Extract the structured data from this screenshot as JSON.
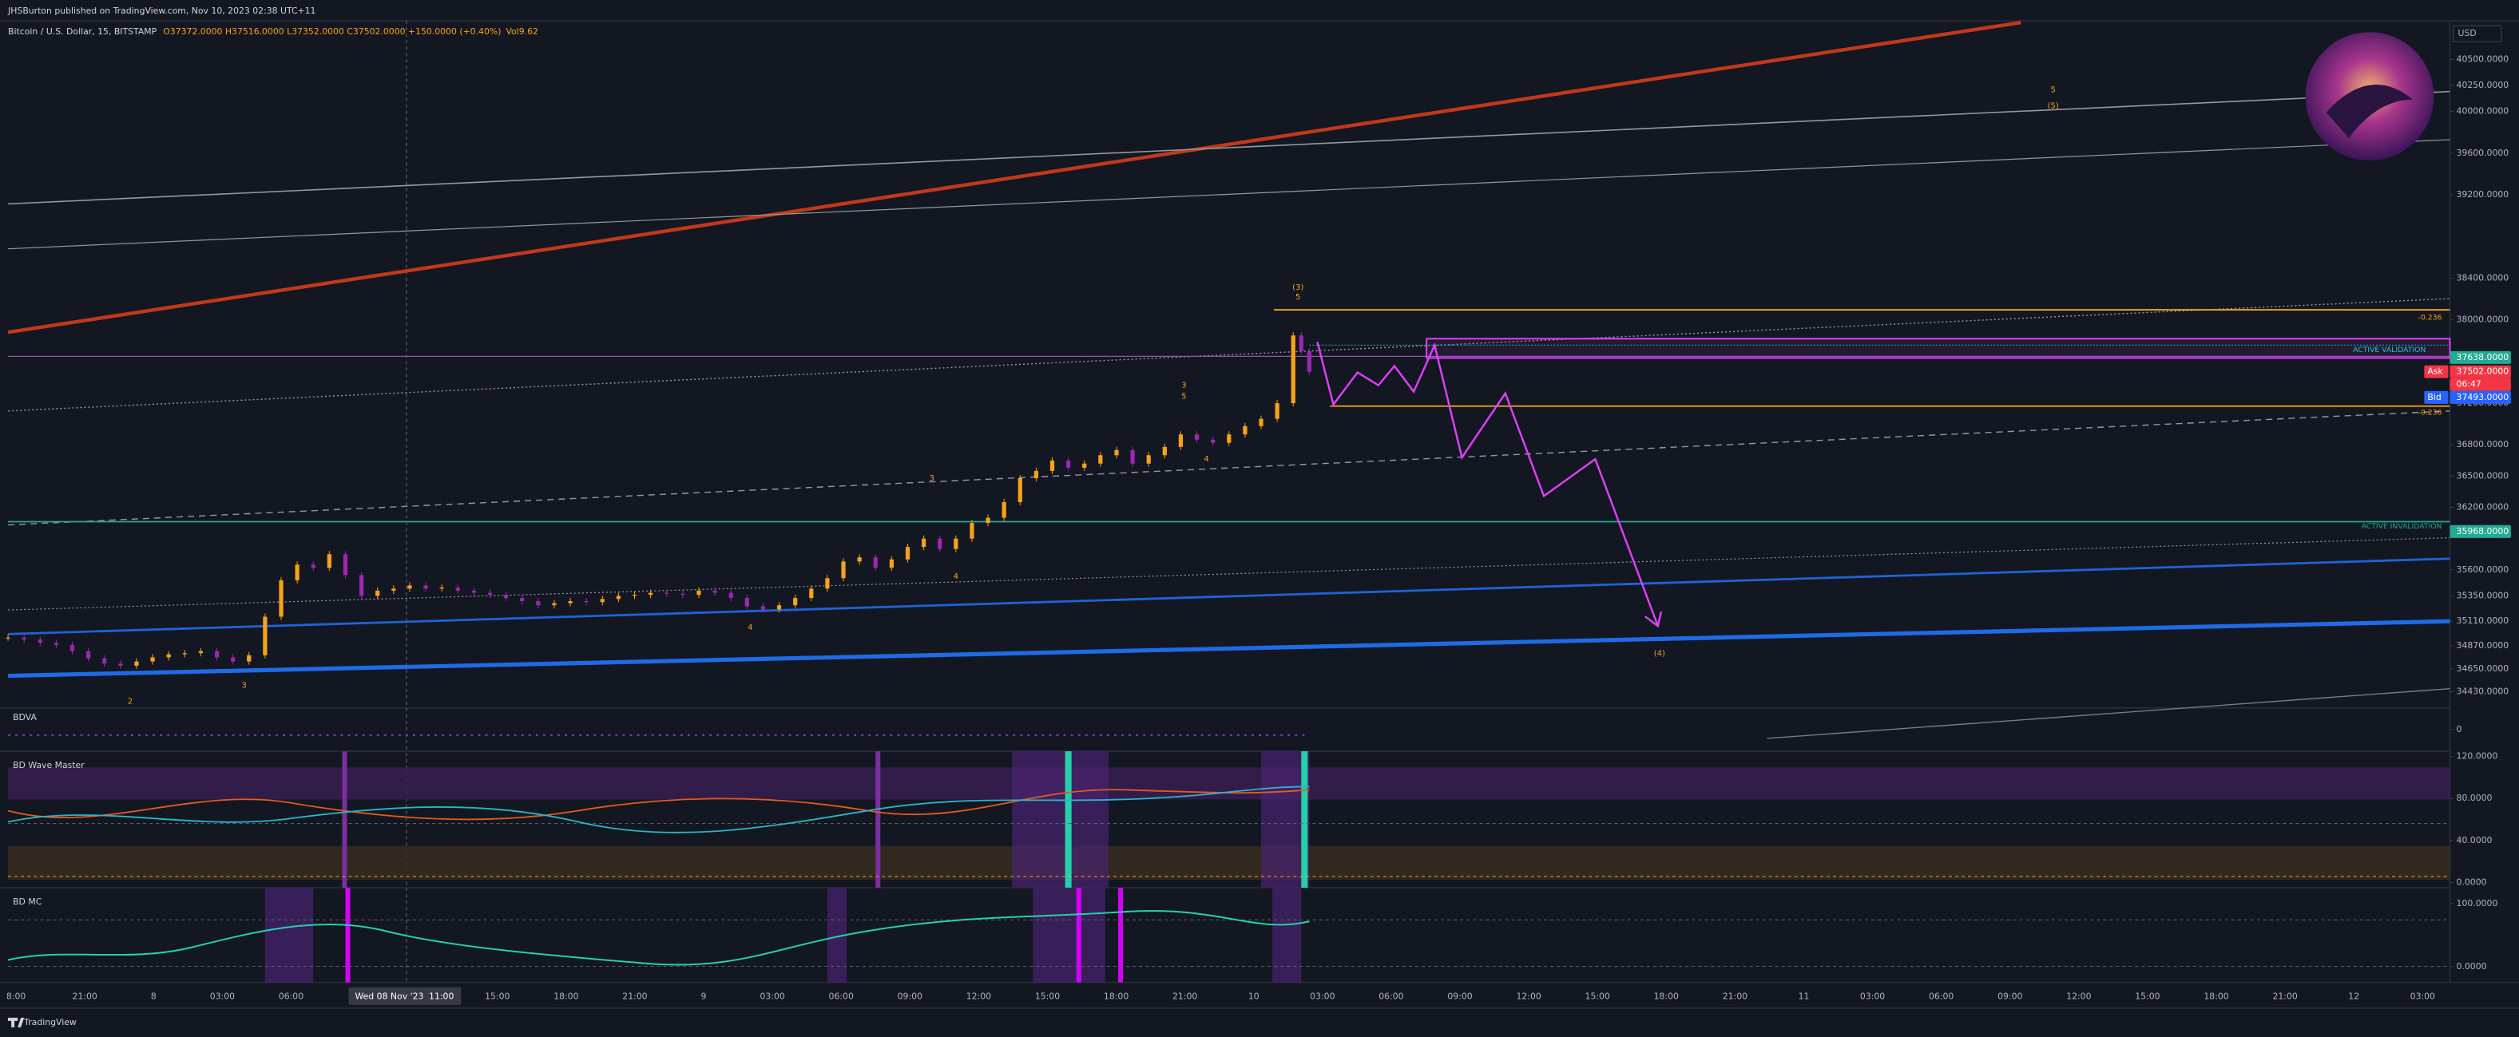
{
  "header": {
    "publisher": "JHSBurton published on TradingView.com, Nov 10, 2023 02:38 UTC+11",
    "symbol": "Bitcoin / U.S. Dollar, 15, BITSTAMP",
    "ohlc": "O37372.0000 H37516.0000 L37352.0000 C37502.0000 +150.0000 (+0.40%)",
    "volume": "Vol9.62"
  },
  "currency": "USD",
  "price_axis": {
    "ylim": [
      34290,
      40870
    ],
    "ticks": [
      {
        "value": 40500,
        "label": "40500.0000"
      },
      {
        "value": 40250,
        "label": "40250.0000"
      },
      {
        "value": 40000,
        "label": "40000.0000"
      },
      {
        "value": 39600,
        "label": "39600.0000"
      },
      {
        "value": 39200,
        "label": "39200.0000"
      },
      {
        "value": 38400,
        "label": "38400.0000"
      },
      {
        "value": 38000,
        "label": "38000.0000"
      },
      {
        "value": 37200,
        "label": "37200.0000"
      },
      {
        "value": 36800,
        "label": "36800.0000"
      },
      {
        "value": 36500,
        "label": "36500.0000"
      },
      {
        "value": 36200,
        "label": "36200.0000"
      },
      {
        "value": 35600,
        "label": "35600.0000"
      },
      {
        "value": 35350,
        "label": "35350.0000"
      },
      {
        "value": 35110,
        "label": "35110.0000"
      },
      {
        "value": 34870,
        "label": "34870.0000"
      },
      {
        "value": 34650,
        "label": "34650.0000"
      },
      {
        "value": 34430,
        "label": "34430.0000"
      }
    ]
  },
  "price_tags": [
    {
      "value": 37638,
      "label": "37638.0000",
      "color": "#22ab94"
    },
    {
      "value": 37502,
      "label": "37502.0000",
      "prefix": "Ask",
      "color": "#f23645"
    },
    {
      "countdown": "06:47",
      "color": "#f23645"
    },
    {
      "value": 37493,
      "label": "37493.0000",
      "prefix": "Bid",
      "color": "#2962ff"
    },
    {
      "value": 35968,
      "label": "35968.0000",
      "color": "#22ab94"
    }
  ],
  "zone_labels": [
    "-0.236",
    "ACTIVE VALIDATION",
    "-0.236",
    "ACTIVE INVALIDATION"
  ],
  "wave_labels": [
    "(3)",
    "5",
    "3",
    "5",
    "(5)",
    "5",
    "(4)",
    "4",
    "4",
    "4",
    "2",
    "3",
    "3"
  ],
  "candles": {
    "colors": {
      "up": "#f7a21b",
      "down": "#9c27b0"
    },
    "close": [
      34950,
      34930,
      34900,
      34880,
      34820,
      34750,
      34700,
      34680,
      34720,
      34760,
      34790,
      34800,
      34820,
      34760,
      34720,
      34780,
      35150,
      35500,
      35650,
      35620,
      35750,
      35550,
      35350,
      35400,
      35420,
      35450,
      35420,
      35430,
      35400,
      35380,
      35360,
      35330,
      35300,
      35260,
      35280,
      35300,
      35290,
      35320,
      35350,
      35360,
      35380,
      35370,
      35360,
      35400,
      35380,
      35330,
      35250,
      35220,
      35260,
      35330,
      35420,
      35520,
      35680,
      35720,
      35620,
      35700,
      35820,
      35900,
      35800,
      35900,
      36050,
      36100,
      36250,
      36480,
      36550,
      36650,
      36580,
      36620,
      36700,
      36750,
      36620,
      36700,
      36780,
      36900,
      36850,
      36820,
      36900,
      36980,
      37050,
      37200,
      37850,
      37700,
      37502
    ]
  },
  "panes": [
    {
      "name": "BDVA",
      "ticks": [
        0
      ]
    },
    {
      "name": "BD Wave Master",
      "ticks": [
        {
          "value": 120,
          "label": "120.0000"
        },
        {
          "value": 80,
          "label": "80.0000"
        },
        {
          "value": 40,
          "label": "40.0000"
        },
        {
          "value": 0,
          "label": "0.0000"
        }
      ]
    },
    {
      "name": "BD MC",
      "ticks": [
        {
          "value": 100,
          "label": "100.0000"
        },
        {
          "value": 0,
          "label": "0.0000"
        }
      ]
    }
  ],
  "time_axis": {
    "labels": [
      "8:00",
      "21:00",
      "8",
      "03:00",
      "06:00",
      "15:00",
      "18:00",
      "21:00",
      "9",
      "03:00",
      "06:00",
      "09:00",
      "12:00",
      "15:00",
      "18:00",
      "21:00",
      "10",
      "03:00",
      "06:00",
      "09:00",
      "12:00",
      "15:00",
      "18:00",
      "21:00",
      "11",
      "03:00",
      "06:00",
      "09:00",
      "12:00",
      "15:00",
      "18:00",
      "21:00",
      "12",
      "03:00"
    ],
    "cursor_date": "Wed 08 Nov '23",
    "cursor_time": "11:00"
  },
  "footer": "TradingView"
}
